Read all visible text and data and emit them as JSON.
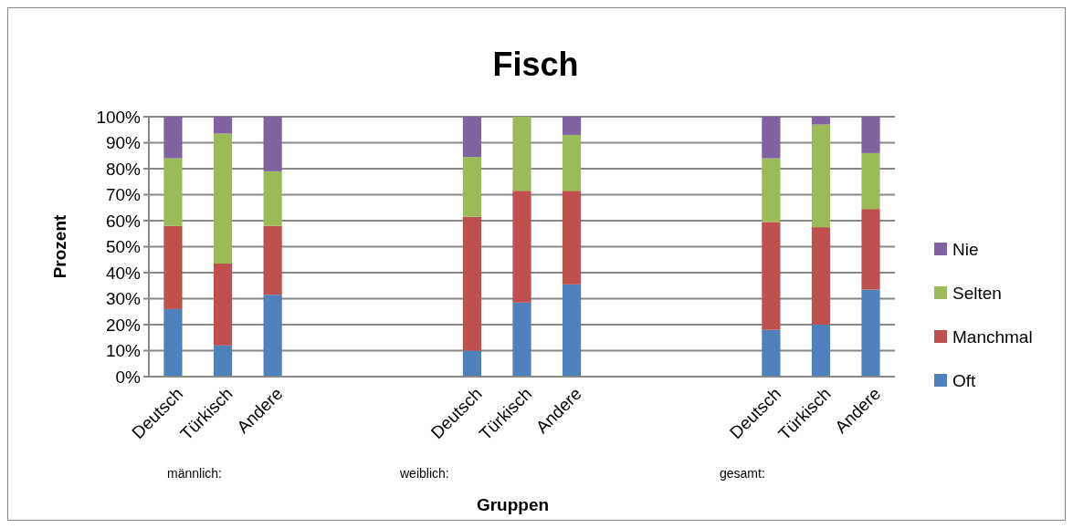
{
  "chart_data": {
    "type": "bar",
    "title": "Fisch",
    "xlabel": "Gruppen",
    "ylabel": "Prozent",
    "stacked": true,
    "categories": [
      "Deutsch",
      "Türkisch",
      "Andere",
      null,
      null,
      null,
      "Deutsch",
      "Türkisch",
      "Andere",
      null,
      null,
      null,
      "Deutsch",
      "Türkisch",
      "Andere"
    ],
    "series": [
      {
        "name": "Oft",
        "color": "#4f81bd",
        "values": [
          26,
          12,
          31.5,
          null,
          null,
          null,
          10,
          28.5,
          35.5,
          null,
          null,
          null,
          18,
          20,
          33.5
        ]
      },
      {
        "name": "Manchmal",
        "color": "#c0504d",
        "values": [
          32,
          31.5,
          26.5,
          null,
          null,
          null,
          51.5,
          43,
          36,
          null,
          null,
          null,
          41.5,
          37.5,
          31
        ]
      },
      {
        "name": "Selten",
        "color": "#9bbb59",
        "values": [
          26,
          50,
          21,
          null,
          null,
          null,
          23,
          28.5,
          21.5,
          null,
          null,
          null,
          24.5,
          39.5,
          21.5
        ]
      },
      {
        "name": "Nie",
        "color": "#8064a2",
        "values": [
          16,
          6.5,
          21,
          null,
          null,
          null,
          15.5,
          0,
          7,
          null,
          null,
          null,
          16,
          3,
          14
        ]
      }
    ],
    "ylim": [
      0,
      100
    ],
    "yticks": [
      {
        "value": 0,
        "label": "0%"
      },
      {
        "value": 10,
        "label": "10%"
      },
      {
        "value": 20,
        "label": "20%"
      },
      {
        "value": 30,
        "label": "30%"
      },
      {
        "value": 40,
        "label": "40%"
      },
      {
        "value": 50,
        "label": "50%"
      },
      {
        "value": 60,
        "label": "60%"
      },
      {
        "value": 70,
        "label": "70%"
      },
      {
        "value": 80,
        "label": "80%"
      },
      {
        "value": 90,
        "label": "90%"
      },
      {
        "value": 100,
        "label": "100%"
      }
    ],
    "grid": "y",
    "legend": "right",
    "annotations": [
      "männlich:",
      "weiblich:",
      "gesamt:"
    ]
  }
}
